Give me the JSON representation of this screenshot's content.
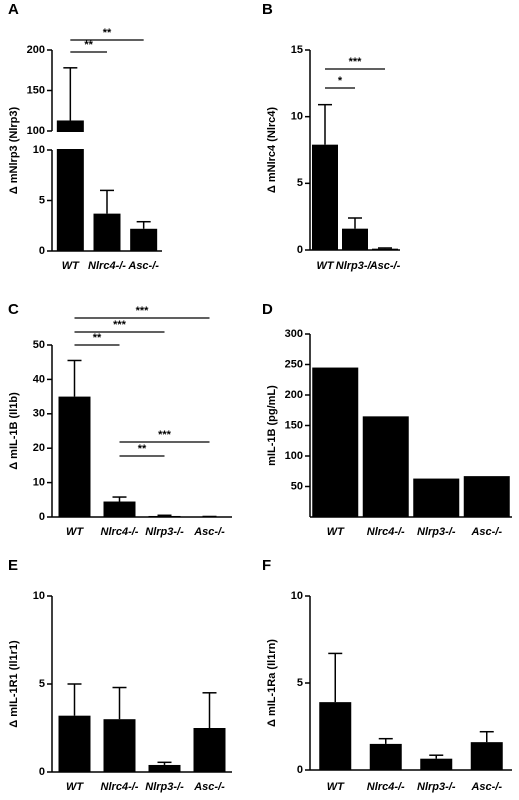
{
  "chart_data": [
    {
      "type": "bar",
      "label": "A",
      "ylabel": "Δ mNlrp3 (Nlrp3)",
      "categories": [
        "WT",
        "Nlrc4-/-",
        "Asc-/-"
      ],
      "values": [
        113,
        3.7,
        2.2
      ],
      "errors": [
        65,
        2.3,
        0.7
      ],
      "color": "#000000",
      "ylim": [
        0,
        200
      ],
      "axis_break": [
        10,
        100
      ],
      "yticks": [
        0,
        5,
        10,
        100,
        150,
        200
      ],
      "significance": [
        {
          "text": "**",
          "pair": [
            "WT",
            "Nlrc4-/-"
          ]
        },
        {
          "text": "**",
          "pair": [
            "WT",
            "Asc-/-"
          ]
        }
      ]
    },
    {
      "type": "bar",
      "label": "B",
      "ylabel": "Δ mNlrc4 (Nlrc4)",
      "categories": [
        "WT",
        "Nlrp3-/-",
        "Asc-/-"
      ],
      "values": [
        7.9,
        1.6,
        0.1
      ],
      "errors": [
        3.0,
        0.8,
        0.05
      ],
      "color": "#000000",
      "ylim": [
        0,
        15
      ],
      "yticks": [
        0,
        5,
        10,
        15
      ],
      "significance": [
        {
          "text": "*",
          "pair": [
            "WT",
            "Nlrp3-/-"
          ]
        },
        {
          "text": "***",
          "pair": [
            "WT",
            "Asc-/-"
          ]
        }
      ]
    },
    {
      "type": "bar",
      "label": "C",
      "ylabel": "Δ mIL-1B (Il1b)",
      "categories": [
        "WT",
        "Nlrc4-/-",
        "Nlrp3-/-",
        "Asc-/-"
      ],
      "values": [
        35,
        4.5,
        0.3,
        0.1
      ],
      "errors": [
        10.5,
        1.3,
        0.2,
        0.05
      ],
      "color": "#000000",
      "ylim": [
        0,
        50
      ],
      "yticks": [
        0,
        10,
        20,
        30,
        40,
        50
      ],
      "significance": [
        {
          "text": "**",
          "pair": [
            "WT",
            "Nlrc4-/-"
          ]
        },
        {
          "text": "***",
          "pair": [
            "WT",
            "Nlrp3-/-"
          ]
        },
        {
          "text": "***",
          "pair": [
            "WT",
            "Asc-/-"
          ]
        },
        {
          "text": "**",
          "pair": [
            "Nlrc4-/-",
            "Nlrp3-/-"
          ]
        },
        {
          "text": "***",
          "pair": [
            "Nlrc4-/-",
            "Asc-/-"
          ]
        }
      ]
    },
    {
      "type": "bar",
      "label": "D",
      "ylabel": "mIL-1B (pg/mL)",
      "categories": [
        "WT",
        "Nlrc4-/-",
        "Nlrp3-/-",
        "Asc-/-"
      ],
      "values": [
        245,
        165,
        63,
        67
      ],
      "color": "#000000",
      "ylim": [
        0,
        300
      ],
      "yticks": [
        50,
        100,
        150,
        200,
        250,
        300
      ]
    },
    {
      "type": "bar",
      "label": "E",
      "ylabel": "Δ mIL-1R1 (Il1r1)",
      "categories": [
        "WT",
        "Nlrc4-/-",
        "Nlrp3-/-",
        "Asc-/-"
      ],
      "values": [
        3.2,
        3.0,
        0.4,
        2.5
      ],
      "errors": [
        1.8,
        1.8,
        0.15,
        2.0
      ],
      "color": "#000000",
      "ylim": [
        0,
        10
      ],
      "yticks": [
        0,
        5,
        10
      ]
    },
    {
      "type": "bar",
      "label": "F",
      "ylabel": "Δ mIL-1Ra (Il1rn)",
      "categories": [
        "WT",
        "Nlrc4-/-",
        "Nlrp3-/-",
        "Asc-/-"
      ],
      "values": [
        3.9,
        1.5,
        0.65,
        1.6
      ],
      "errors": [
        2.8,
        0.3,
        0.2,
        0.6
      ],
      "color": "#000000",
      "ylim": [
        0,
        10
      ],
      "yticks": [
        0,
        5,
        10
      ]
    }
  ]
}
